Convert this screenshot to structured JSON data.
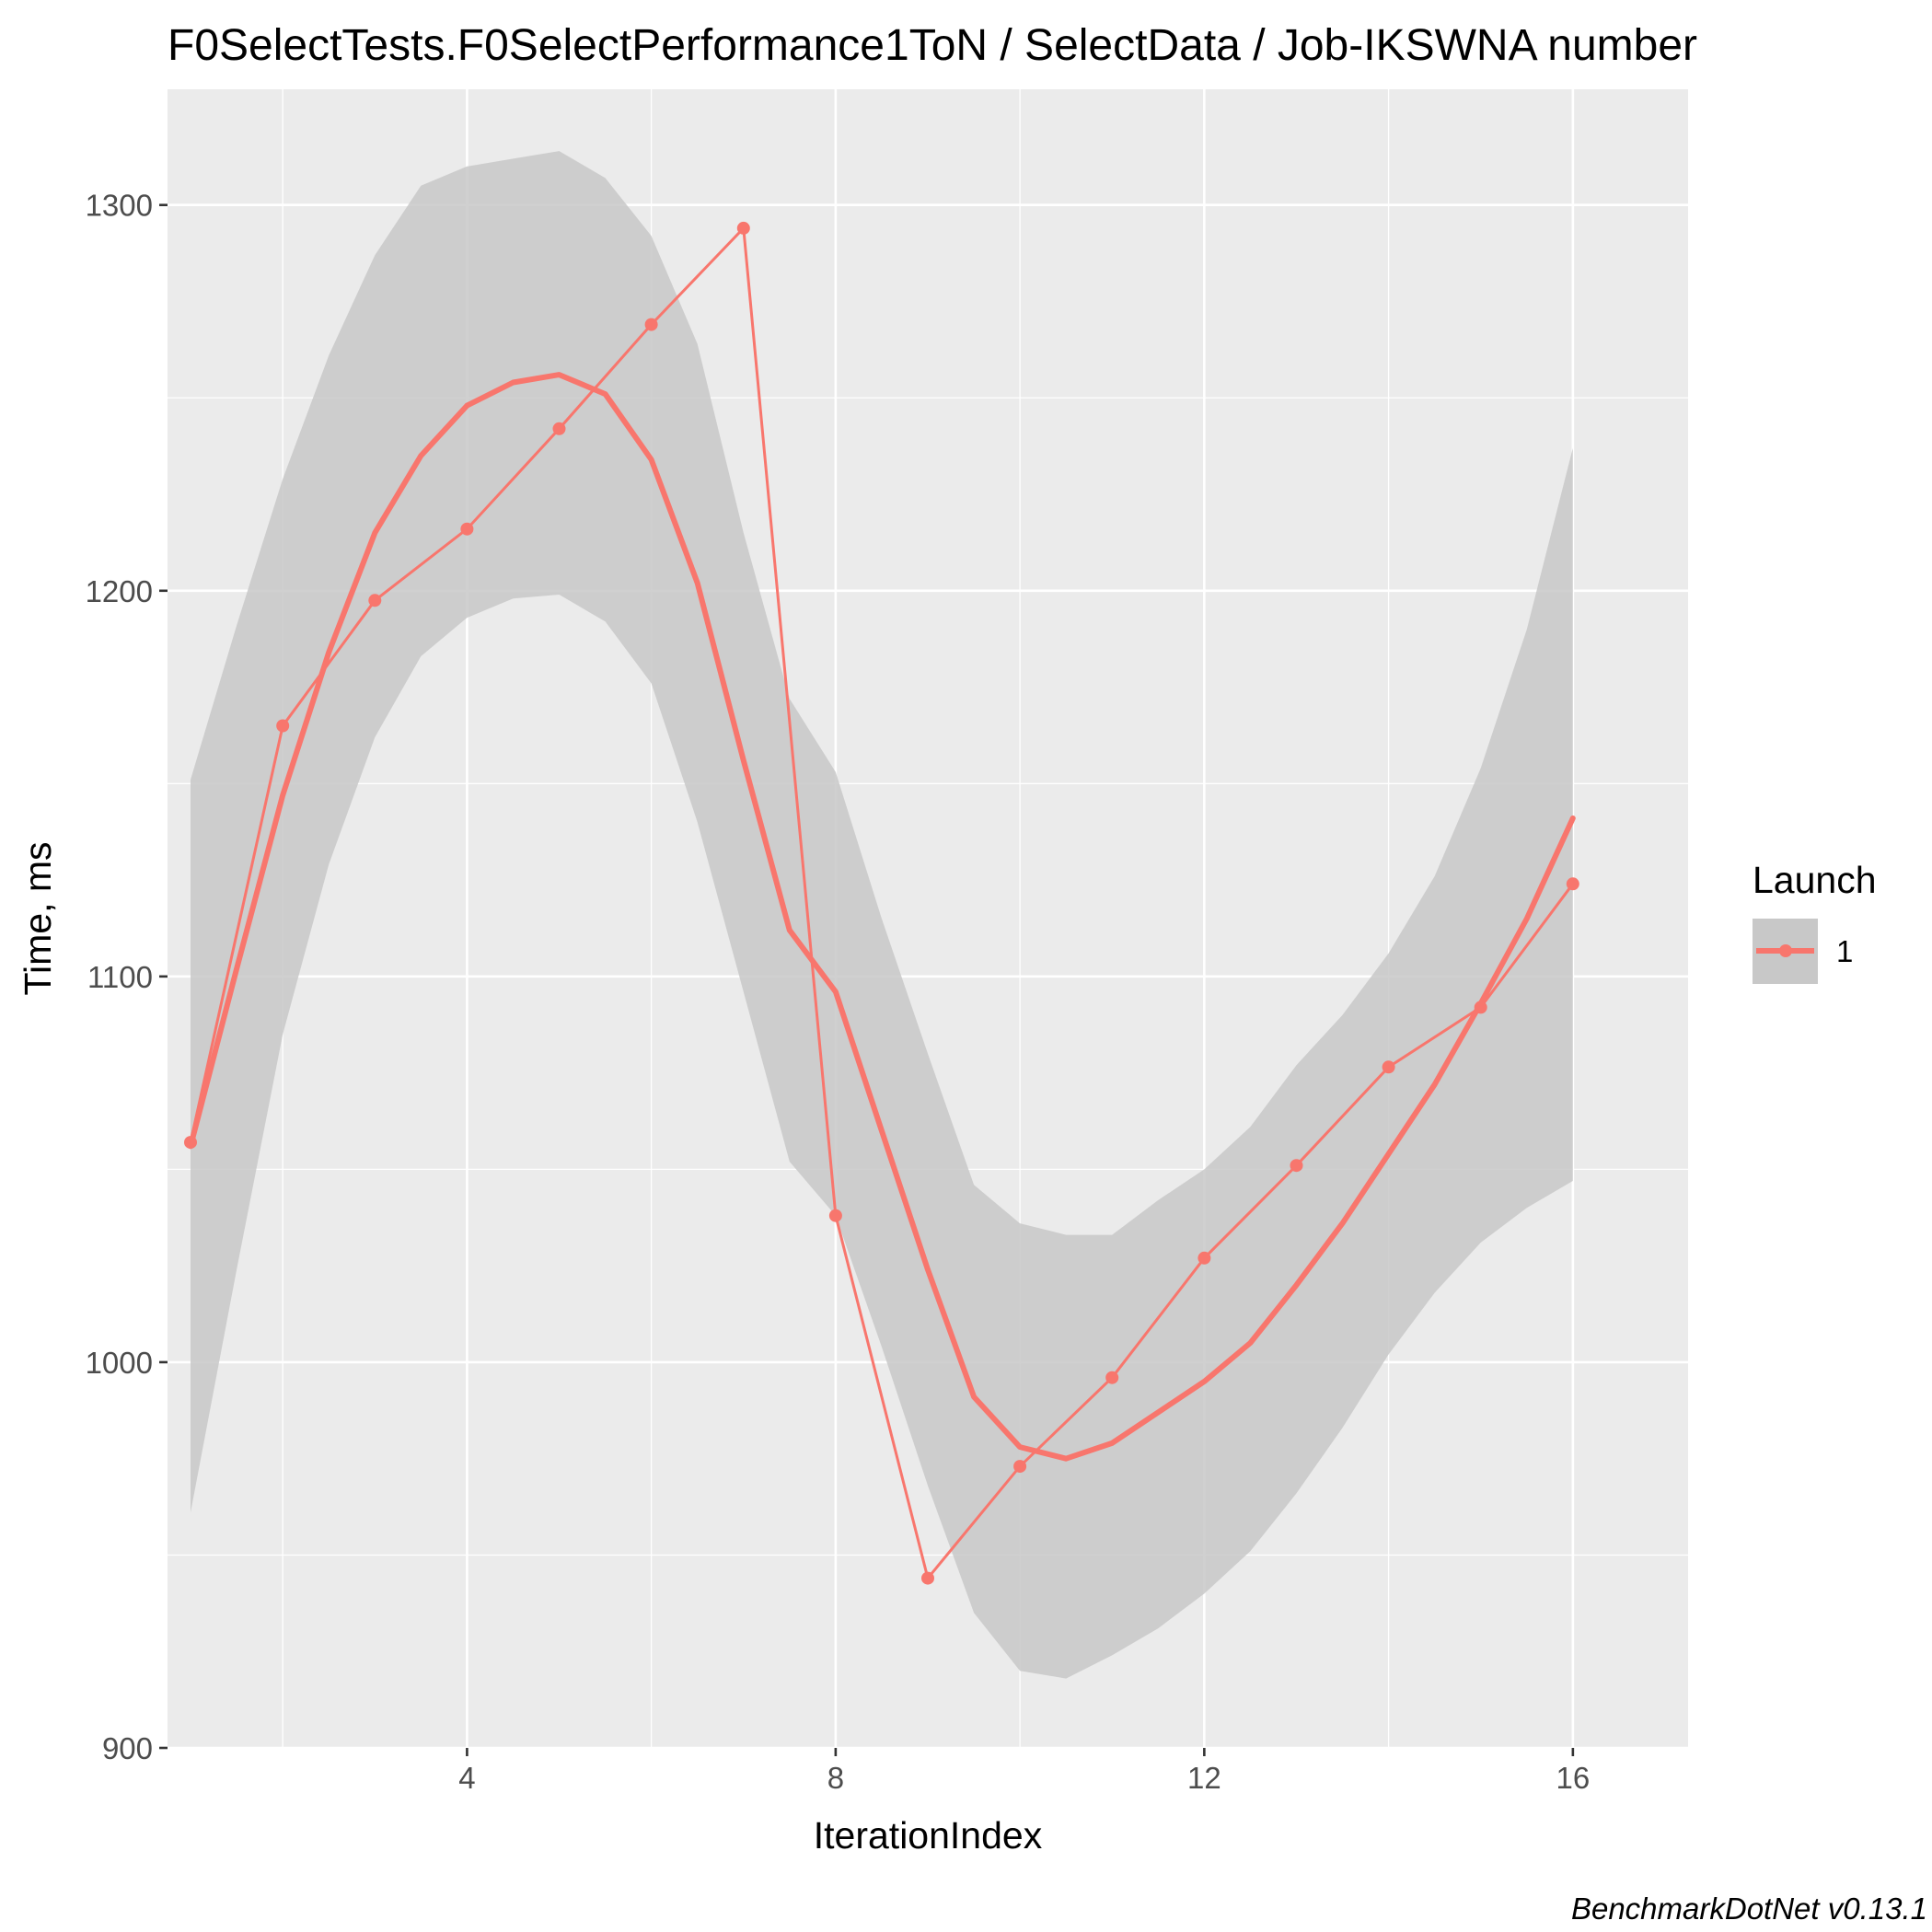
{
  "chart_data": {
    "type": "line",
    "title": "F0SelectTests.F0SelectPerformance1ToN / SelectData / Job-IKSWNA number",
    "xlabel": "IterationIndex",
    "ylabel": "Time, ms",
    "caption": "BenchmarkDotNet v0.13.1",
    "xlim": [
      0.75,
      17.25
    ],
    "ylim": [
      900,
      1330
    ],
    "x_ticks": [
      4,
      8,
      12,
      16
    ],
    "y_ticks": [
      900,
      1000,
      1100,
      1200,
      1300
    ],
    "grid": true,
    "legend": {
      "title": "Launch",
      "position": "right",
      "entries": [
        "1"
      ]
    },
    "colors": {
      "series": "#f8766d",
      "panel": "#ebebeb",
      "band": "#c8c8c8",
      "grid": "#ffffff"
    },
    "series": [
      {
        "name": "1",
        "x": [
          1,
          2,
          3,
          4,
          5,
          6,
          7,
          8,
          9,
          10,
          11,
          12,
          13,
          14,
          15,
          16
        ],
        "values": [
          1057,
          1165,
          1197.5,
          1216,
          1242,
          1269,
          1294,
          1038,
          944,
          973,
          996,
          1027,
          1051,
          1076.5,
          1092,
          1124
        ]
      }
    ],
    "smooth": {
      "x": [
        1,
        1.5,
        2,
        2.5,
        3,
        3.5,
        4,
        4.5,
        5,
        5.5,
        6,
        6.5,
        7,
        7.5,
        8,
        8.5,
        9,
        9.5,
        10,
        10.5,
        11,
        11.5,
        12,
        12.5,
        13,
        13.5,
        14,
        14.5,
        15,
        15.5,
        16
      ],
      "fit": [
        1056,
        1102,
        1147,
        1184,
        1215,
        1235,
        1248,
        1254,
        1256,
        1251,
        1234,
        1202,
        1156,
        1112,
        1096,
        1060,
        1024,
        991,
        978,
        975,
        979,
        987,
        995,
        1005,
        1020,
        1036,
        1054,
        1072,
        1093,
        1115,
        1141
      ],
      "lower": [
        961,
        1024,
        1085,
        1129,
        1162,
        1183,
        1193,
        1198,
        1199,
        1192,
        1176,
        1140,
        1096,
        1052,
        1038,
        1004,
        968,
        935,
        920,
        918,
        924,
        931,
        940,
        951,
        966,
        983,
        1002,
        1018,
        1031,
        1040,
        1047
      ],
      "upper": [
        1151,
        1191,
        1229,
        1261,
        1287,
        1305,
        1310,
        1312,
        1314,
        1307,
        1292,
        1264,
        1215,
        1172,
        1153,
        1115,
        1080,
        1046,
        1036,
        1033,
        1033,
        1042,
        1050,
        1061,
        1077,
        1090,
        1106,
        1126,
        1154,
        1190,
        1237
      ]
    }
  }
}
